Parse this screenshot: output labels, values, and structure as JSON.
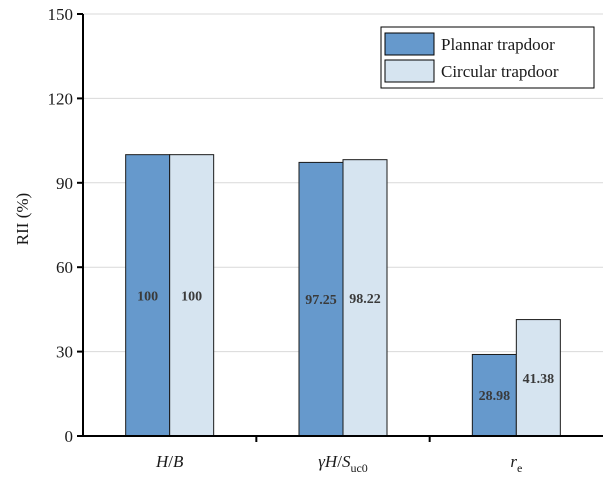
{
  "chart_data": {
    "type": "bar",
    "categories": [
      {
        "italic": "H",
        "rest": "/",
        "italic2": "B",
        "sub": ""
      },
      {
        "italic": "γH",
        "rest": "/",
        "italic2": "S",
        "sub": "uc0"
      },
      {
        "italic": "r",
        "rest": "",
        "italic2": "",
        "sub": "e"
      }
    ],
    "category_names": [
      "H/B",
      "γH/Suc0",
      "re"
    ],
    "series": [
      {
        "name": "Plannar trapdoor",
        "color": "#6699cc",
        "values": [
          100,
          97.25,
          28.98
        ],
        "labels": [
          "100",
          "97.25",
          "28.98"
        ]
      },
      {
        "name": "Circular trapdoor",
        "color": "#d6e4f0",
        "values": [
          100,
          98.22,
          41.38
        ],
        "labels": [
          "100",
          "98.22",
          "41.38"
        ]
      }
    ],
    "ylabel": "RII (%)",
    "ylim": [
      0,
      150
    ],
    "yticks": [
      "0",
      "30",
      "60",
      "90",
      "120",
      "150"
    ],
    "ytick_values": [
      0,
      30,
      60,
      90,
      120,
      150
    ],
    "grid": "horizontal",
    "legend_position": "top-right"
  }
}
